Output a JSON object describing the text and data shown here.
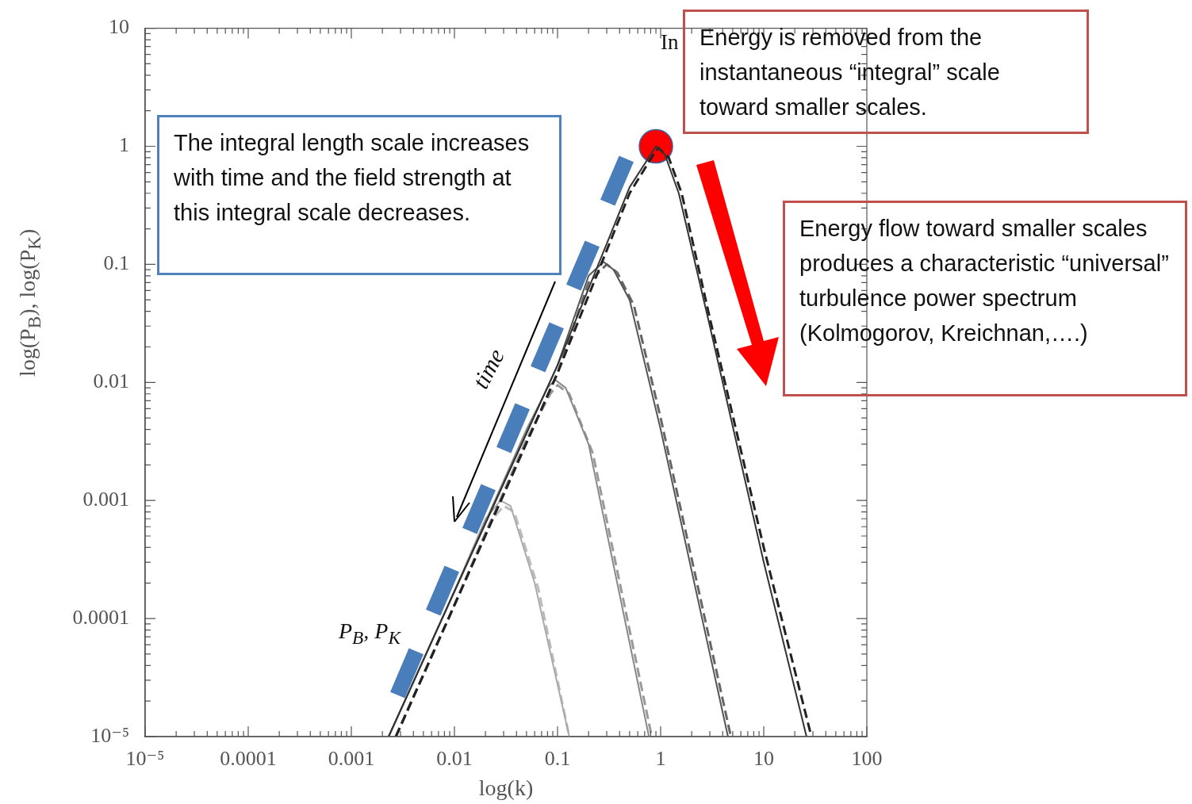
{
  "chart_data": {
    "type": "line",
    "xlabel": "log(k)",
    "ylabel": "log(P$_{B}$), log(P$_{K}$)",
    "xlim": [
      1e-05,
      100
    ],
    "ylim": [
      1e-05,
      10
    ],
    "xticks": [
      {
        "value": 1e-05,
        "label": "10⁻⁵"
      },
      0.0001,
      0.001,
      0.01,
      0.1,
      1,
      10,
      100
    ],
    "yticks": [
      {
        "value": 1e-05,
        "label": "10⁻⁵"
      },
      0.0001,
      0.001,
      0.01,
      0.1,
      1,
      10
    ],
    "log": "xy",
    "grid": false,
    "legend": false,
    "series": [
      {
        "color": "#333333",
        "line_style": "solid",
        "x": [
          0.0023,
          0.01,
          0.1,
          0.5,
          0.8,
          0.9,
          1.1,
          1.5,
          3,
          10,
          26
        ],
        "values": [
          1e-05,
          0.00017,
          0.014,
          0.45,
          0.85,
          1,
          0.85,
          0.4,
          0.03,
          0.0003,
          1e-05
        ]
      },
      {
        "color": "#222222",
        "line_style": "dashed",
        "x": [
          0.0027,
          0.01,
          0.1,
          0.5,
          0.85,
          0.95,
          1.2,
          1.6,
          3,
          10,
          29
        ],
        "values": [
          1e-05,
          0.00013,
          0.012,
          0.4,
          0.85,
          0.97,
          0.8,
          0.4,
          0.035,
          0.0004,
          1e-05
        ]
      },
      {
        "color": "#555555",
        "line_style": "solid",
        "x": [
          0.0023,
          0.01,
          0.1,
          0.2,
          0.28,
          0.35,
          0.5,
          1,
          4.5
        ],
        "values": [
          1e-05,
          0.00017,
          0.014,
          0.08,
          0.105,
          0.09,
          0.05,
          0.004,
          1e-05
        ]
      },
      {
        "color": "#666666",
        "line_style": "dashed",
        "x": [
          0.0027,
          0.01,
          0.1,
          0.2,
          0.3,
          0.38,
          0.55,
          1,
          4.8
        ],
        "values": [
          1e-05,
          0.00013,
          0.012,
          0.07,
          0.1,
          0.085,
          0.045,
          0.005,
          1e-05
        ]
      },
      {
        "color": "#888888",
        "line_style": "solid",
        "x": [
          0.0023,
          0.01,
          0.05,
          0.08,
          0.095,
          0.12,
          0.2,
          0.77
        ],
        "values": [
          1e-05,
          0.00017,
          0.004,
          0.009,
          0.0105,
          0.009,
          0.003,
          1e-05
        ]
      },
      {
        "color": "#999999",
        "line_style": "dashed",
        "x": [
          0.0027,
          0.01,
          0.05,
          0.085,
          0.1,
          0.13,
          0.22,
          0.82
        ],
        "values": [
          1e-05,
          0.00013,
          0.0033,
          0.008,
          0.0095,
          0.008,
          0.0025,
          1e-05
        ]
      },
      {
        "color": "#aaaaaa",
        "line_style": "solid",
        "x": [
          0.0023,
          0.01,
          0.02,
          0.028,
          0.035,
          0.06,
          0.13
        ],
        "values": [
          1e-05,
          0.00017,
          0.0007,
          0.001,
          0.0009,
          0.0002,
          1e-05
        ]
      },
      {
        "color": "#bbbbbb",
        "line_style": "dashed",
        "x": [
          0.0027,
          0.01,
          0.022,
          0.03,
          0.038,
          0.065,
          0.13
        ],
        "values": [
          1e-05,
          0.00013,
          0.00065,
          0.0009,
          0.0008,
          0.00018,
          1e-05
        ]
      },
      {
        "type": "scatter",
        "marker": "circle",
        "color": "#ff0000",
        "x": [
          0.9
        ],
        "values": [
          1
        ]
      }
    ],
    "annotations": [
      "In",
      "Energy is removed from the instantaneous “integral” scale toward smaller scales.",
      "The integral length scale increases with time and the field strength at this integral scale decreases.",
      "Energy flow toward smaller scales produces a characteristic “universal” turbulence power spectrum (Kolmogorov, Kreichnan,….)",
      "time",
      "P$_{B}$, P$_{K}$"
    ]
  }
}
